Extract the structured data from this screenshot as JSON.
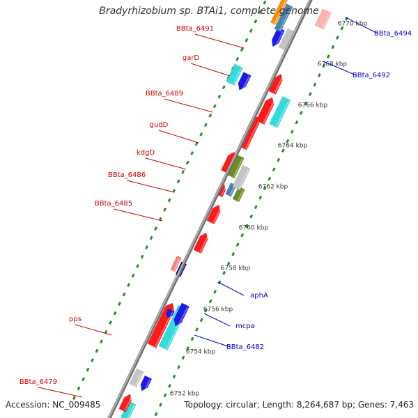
{
  "title": "Bradyrhizobium sp. BTAi1, complete genome",
  "accession": "Accession: NC_009485",
  "topology": "Topology: circular; Length: 8,264,687 bp; Genes: 7,463",
  "colors": {
    "background": "#ffffff",
    "backbone": "#8c8c8c",
    "tick": "#2e8b2e",
    "label_left": "#cc0000",
    "label_right": "#0000cc",
    "red": "#ff1a1a",
    "blue": "#1a1aee",
    "cyan": "#33dcdc",
    "gray": "#c4c4c4",
    "olive": "#6b8e23",
    "steel": "#4682b4",
    "navy": "#000080",
    "salmon": "#fa8072",
    "orange": "#ff8c00",
    "pink": "#ffb0b0"
  },
  "scale_labels": [
    "6770 kbp",
    "6768 kbp",
    "6766 kbp",
    "6764 kbp",
    "6762 kbp",
    "6760 kbp",
    "6758 kbp",
    "6756 kbp",
    "6754 kbp",
    "6752 kbp"
  ],
  "left_labels": [
    "BBta_6491",
    "garD",
    "BBta_6489",
    "gudD",
    "kdgD",
    "BBta_6486",
    "BBta_6485",
    "pps",
    "BBta_6479"
  ],
  "right_labels": [
    "BBta_6494",
    "BBta_6492",
    "aphA",
    "mcpa",
    "BBta_6482"
  ]
}
